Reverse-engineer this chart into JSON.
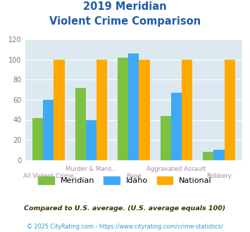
{
  "title_line1": "2019 Meridian",
  "title_line2": "Violent Crime Comparison",
  "categories": [
    "All Violent Crime",
    "Murder & Mans...",
    "Rape",
    "Aggravated Assault",
    "Robbery"
  ],
  "cat_labels_top": [
    "",
    "Murder & Mans...",
    "",
    "Aggravated Assault",
    ""
  ],
  "cat_labels_bot": [
    "All Violent Crime",
    "",
    "Rape",
    "",
    "Robbery"
  ],
  "meridian": [
    42,
    72,
    102,
    44,
    8
  ],
  "idaho": [
    60,
    40,
    106,
    67,
    10
  ],
  "national": [
    100,
    100,
    100,
    100,
    100
  ],
  "color_meridian": "#7dc143",
  "color_idaho": "#3fa9f5",
  "color_national": "#ffaa00",
  "ylim": [
    0,
    120
  ],
  "yticks": [
    0,
    20,
    40,
    60,
    80,
    100,
    120
  ],
  "legend_labels": [
    "Meridian",
    "Idaho",
    "National"
  ],
  "footnote1": "Compared to U.S. average. (U.S. average equals 100)",
  "footnote2": "© 2025 CityRating.com - https://www.cityrating.com/crime-statistics/",
  "background_color": "#dce9f0",
  "title_color": "#1f5ca6",
  "footnote1_color": "#333300",
  "footnote2_color": "#3399cc",
  "cat_label_color": "#aa88aa"
}
